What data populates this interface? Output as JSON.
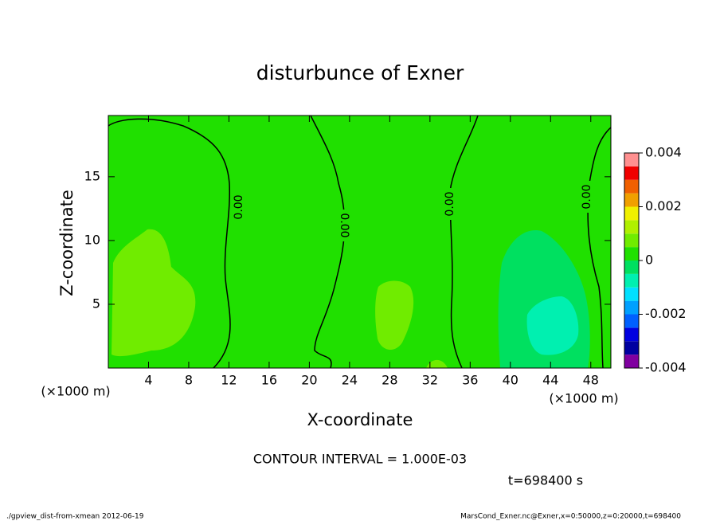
{
  "chart_data": {
    "type": "contour",
    "title": "disturbunce of Exner",
    "x_label": "X-coordinate",
    "y_label": "Z-coordinate",
    "x_unit": "(×1000 m)",
    "xlim": [
      0,
      50
    ],
    "xticks": [
      4,
      8,
      12,
      16,
      20,
      24,
      28,
      32,
      36,
      40,
      44,
      48
    ],
    "ylim": [
      0,
      19.8
    ],
    "yticks": [
      5,
      10,
      15
    ],
    "contour_labels": [
      "0.00",
      "0.00",
      "0.00",
      "0.00"
    ],
    "contour_interval": "CONTOUR INTERVAL = 1.000E-03",
    "time": "t=698400 s",
    "footer_left": "./gpview_dist-from-xmean  2012-06-19",
    "footer_right": "MarsCond_Exner.nc@Exner,x=0:50000,z=0:20000,t=698400",
    "colorbar": {
      "levels": [
        -0.004,
        -0.0035,
        -0.003,
        -0.0025,
        -0.002,
        -0.0015,
        -0.001,
        -0.0005,
        0,
        0.0005,
        0.001,
        0.0015,
        0.002,
        0.0025,
        0.003,
        0.0035,
        0.004
      ],
      "colors": [
        "#8000a0",
        "#0000a0",
        "#0000e0",
        "#0060ff",
        "#00a0ff",
        "#00e0ff",
        "#00f0b0",
        "#00e060",
        "#20e000",
        "#70ec00",
        "#b0f000",
        "#f0f000",
        "#f0a000",
        "#f06000",
        "#f00000",
        "#ff9090"
      ],
      "ticks": [
        -0.004,
        -0.002,
        0,
        0.002,
        0.004
      ]
    }
  }
}
